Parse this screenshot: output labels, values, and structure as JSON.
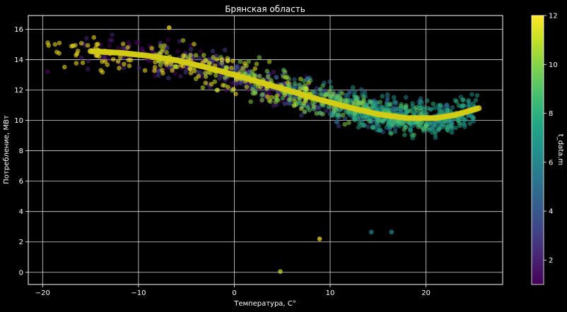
{
  "chart_data": {
    "type": "scatter",
    "title": "Брянская область",
    "xlabel": "Температура, С°",
    "ylabel": "Потребление, МВт",
    "xlim": [
      -21.5,
      28
    ],
    "ylim": [
      -0.8,
      16.9
    ],
    "xticks": [
      -20,
      -10,
      0,
      10,
      20
    ],
    "yticks": [
      0,
      2,
      4,
      6,
      8,
      10,
      12,
      14,
      16
    ],
    "grid": true,
    "background": "#000000",
    "colorbar": {
      "label": "t_data.m",
      "range": [
        1,
        12
      ],
      "ticks": [
        2,
        4,
        6,
        8,
        10,
        12
      ],
      "colormap": "viridis"
    },
    "fit_curve": {
      "name": "",
      "color": "#d4cc14",
      "x": [
        -15,
        -12,
        -9,
        -6,
        -3,
        0,
        3,
        6,
        9,
        12,
        15,
        18,
        21,
        23,
        25.5
      ],
      "y": [
        14.55,
        14.45,
        14.25,
        13.95,
        13.5,
        13.0,
        12.45,
        11.9,
        11.35,
        10.85,
        10.4,
        10.15,
        10.15,
        10.35,
        10.8
      ]
    },
    "clusters": [
      {
        "month": 1,
        "x_range": [
          -14,
          8
        ],
        "count": 110
      },
      {
        "month": 2,
        "x_range": [
          -16,
          6
        ],
        "count": 100
      },
      {
        "month": 3,
        "x_range": [
          -8,
          12
        ],
        "count": 110
      },
      {
        "month": 4,
        "x_range": [
          0,
          17
        ],
        "count": 120
      },
      {
        "month": 5,
        "x_range": [
          6,
          23
        ],
        "count": 130
      },
      {
        "month": 6,
        "x_range": [
          10,
          25
        ],
        "count": 130
      },
      {
        "month": 7,
        "x_range": [
          12,
          25.5
        ],
        "count": 140
      },
      {
        "month": 8,
        "x_range": [
          10,
          24
        ],
        "count": 130
      },
      {
        "month": 9,
        "x_range": [
          5,
          20
        ],
        "count": 120
      },
      {
        "month": 10,
        "x_range": [
          -2,
          14
        ],
        "count": 110
      },
      {
        "month": 11,
        "x_range": [
          -8,
          8
        ],
        "count": 100
      },
      {
        "month": 12,
        "x_range": [
          -20,
          4
        ],
        "count": 90
      }
    ],
    "outliers": [
      {
        "x": 8.9,
        "y": 2.2,
        "month": 12
      },
      {
        "x": 14.3,
        "y": 2.65,
        "month": 6
      },
      {
        "x": 16.4,
        "y": 2.65,
        "month": 6
      },
      {
        "x": 4.8,
        "y": 0.05,
        "month": 11
      },
      {
        "x": -19.5,
        "y": 13.2,
        "month": 1
      },
      {
        "x": -6.8,
        "y": 16.1,
        "month": 12
      }
    ]
  }
}
